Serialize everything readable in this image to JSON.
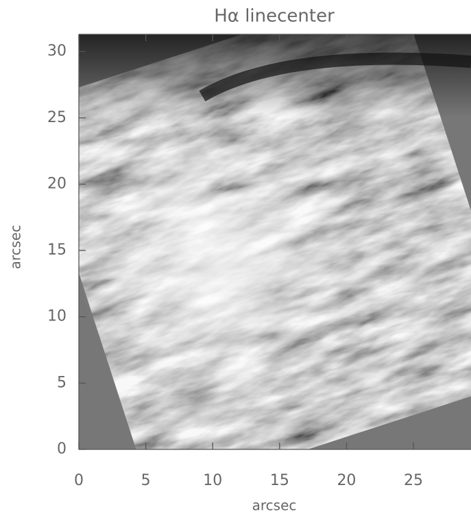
{
  "chart_data": {
    "type": "image",
    "title": "Hα linecenter",
    "x_label": "arcsec",
    "y_label": "arcsec",
    "xlim": [
      0,
      29.3
    ],
    "ylim": [
      0,
      31.3
    ],
    "xticks": [
      0,
      5,
      10,
      15,
      20,
      25
    ],
    "yticks": [
      0,
      5,
      10,
      15,
      20,
      25,
      30
    ],
    "colormap": "gray"
  }
}
